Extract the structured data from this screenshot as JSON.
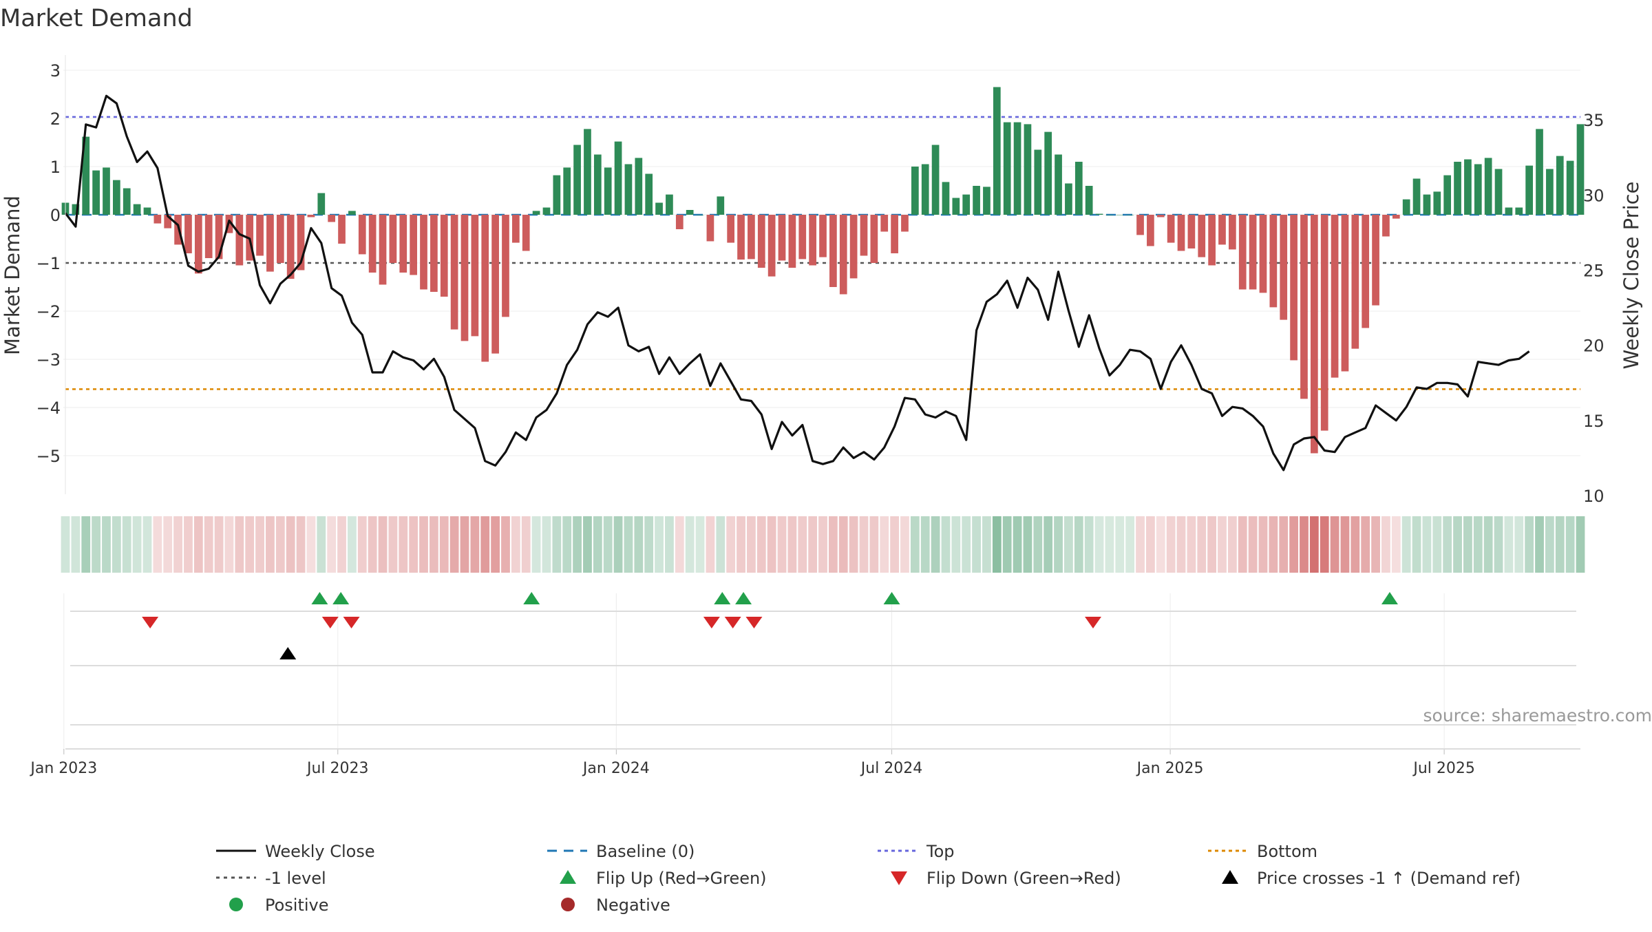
{
  "title": "Market Demand",
  "source": "source: sharemaestro.com",
  "colors": {
    "positive": "#2e8b57",
    "negative": "#cd5c5c",
    "close": "#111111",
    "baseline": "#1f77b4",
    "top": "#6666dd",
    "bottom": "#dd8800",
    "minus_one": "#555555",
    "flip_up": "#22a04b",
    "flip_down": "#d62728",
    "cross": "#000000"
  },
  "chart_data": {
    "type": "bar",
    "title": "Market Demand",
    "ylabel": "Market Demand",
    "y2label": "Weekly Close Price",
    "ylim": [
      -5.4,
      3.2
    ],
    "y2lim": [
      10,
      38.4
    ],
    "yticks": [
      "3",
      "2",
      "1",
      "0",
      "−1",
      "−2",
      "−3",
      "−4",
      "−5"
    ],
    "y2ticks": [
      "35",
      "30",
      "25",
      "20",
      "15",
      "10"
    ],
    "x_start": "2023-01-02",
    "x_end": "2025-09-29",
    "xticks": [
      {
        "date": "2023-01-01",
        "label": "Jan 2023"
      },
      {
        "date": "2023-07-01",
        "label": "Jul 2023"
      },
      {
        "date": "2024-01-01",
        "label": "Jan 2024"
      },
      {
        "date": "2024-07-01",
        "label": "Jul 2024"
      },
      {
        "date": "2025-01-01",
        "label": "Jan 2025"
      },
      {
        "date": "2025-07-01",
        "label": "Jul 2025"
      }
    ],
    "reference_lines": {
      "baseline": 0,
      "top": 2.03,
      "bottom": -3.62,
      "minus_one": -1.0
    },
    "demand": [
      0.25,
      0.22,
      1.62,
      0.92,
      0.98,
      0.72,
      0.55,
      0.22,
      0.15,
      -0.18,
      -0.28,
      -0.62,
      -0.8,
      -1.22,
      -0.9,
      -0.92,
      -0.38,
      -1.05,
      -0.95,
      -0.85,
      -1.18,
      -1.0,
      -1.33,
      -1.15,
      -0.05,
      0.45,
      -0.15,
      -0.6,
      0.08,
      -0.82,
      -1.2,
      -1.45,
      -1.0,
      -1.2,
      -1.25,
      -1.55,
      -1.6,
      -1.7,
      -2.38,
      -2.62,
      -2.52,
      -3.05,
      -2.88,
      -2.12,
      -0.58,
      -0.75,
      0.08,
      0.15,
      0.82,
      0.98,
      1.45,
      1.78,
      1.25,
      0.98,
      1.52,
      1.05,
      1.18,
      0.85,
      0.25,
      0.42,
      -0.3,
      0.1,
      0.0,
      -0.55,
      0.38,
      -0.58,
      -0.93,
      -0.92,
      -1.1,
      -1.28,
      -0.95,
      -1.1,
      -0.92,
      -1.05,
      -0.88,
      -1.5,
      -1.65,
      -1.32,
      -0.85,
      -1.0,
      -0.35,
      -0.8,
      -0.35,
      1.0,
      1.05,
      1.45,
      0.68,
      0.35,
      0.42,
      0.6,
      0.58,
      2.65,
      1.92,
      1.92,
      1.88,
      1.35,
      1.72,
      1.25,
      0.65,
      1.1,
      0.6,
      0.02,
      0.0,
      0.0,
      0.0,
      -0.42,
      -0.65,
      -0.05,
      -0.58,
      -0.75,
      -0.7,
      -0.88,
      -1.05,
      -0.62,
      -0.72,
      -1.55,
      -1.55,
      -1.62,
      -1.92,
      -2.18,
      -3.02,
      -3.82,
      -4.95,
      -4.48,
      -3.38,
      -3.25,
      -2.78,
      -2.35,
      -1.88,
      -0.45,
      -0.08,
      0.32,
      0.75,
      0.42,
      0.48,
      0.82,
      1.1,
      1.15,
      1.05,
      1.18,
      0.95,
      0.15,
      0.15,
      1.02,
      1.78,
      0.95,
      1.22,
      1.12,
      1.88
    ],
    "close": [
      28.8,
      27.9,
      34.7,
      34.5,
      36.6,
      36.1,
      33.9,
      32.2,
      32.9,
      31.8,
      28.6,
      28.0,
      25.3,
      24.9,
      25.1,
      25.9,
      28.3,
      27.4,
      27.1,
      24.0,
      22.8,
      24.1,
      24.7,
      25.5,
      27.8,
      26.8,
      23.8,
      23.3,
      21.5,
      20.7,
      18.2,
      18.2,
      19.6,
      19.2,
      19.0,
      18.4,
      19.1,
      17.9,
      15.7,
      15.1,
      14.5,
      12.3,
      12.0,
      12.9,
      14.2,
      13.7,
      15.2,
      15.7,
      16.8,
      18.7,
      19.7,
      21.4,
      22.2,
      21.9,
      22.5,
      20.0,
      19.6,
      19.9,
      18.1,
      19.2,
      18.1,
      18.8,
      19.4,
      17.3,
      18.8,
      17.6,
      16.4,
      16.3,
      15.4,
      13.1,
      14.9,
      14.0,
      14.7,
      12.3,
      12.1,
      12.3,
      13.2,
      12.5,
      12.9,
      12.4,
      13.2,
      14.6,
      16.5,
      16.4,
      15.4,
      15.2,
      15.6,
      15.3,
      13.7,
      21.0,
      22.9,
      23.4,
      24.3,
      22.5,
      24.5,
      23.7,
      21.7,
      24.9,
      22.3,
      19.9,
      22.0,
      19.8,
      18.0,
      18.7,
      19.7,
      19.6,
      19.1,
      17.1,
      18.9,
      20.0,
      18.7,
      17.1,
      16.8,
      15.3,
      15.9,
      15.8,
      15.3,
      14.6,
      12.8,
      11.7,
      13.4,
      13.8,
      13.9,
      13.0,
      12.9,
      13.9,
      14.2,
      14.5,
      16.0,
      15.5,
      15.0,
      15.9,
      17.2,
      17.1,
      17.5,
      17.5,
      17.4,
      16.6,
      18.9,
      18.8,
      18.7,
      19.0,
      19.1,
      19.6
    ],
    "flip_up_dates": [
      "2023-06-19",
      "2023-07-03",
      "2023-11-06",
      "2024-03-11",
      "2024-03-25",
      "2024-07-01",
      "2025-05-26"
    ],
    "flip_down_dates": [
      "2023-02-27",
      "2023-06-26",
      "2023-07-10",
      "2024-03-04",
      "2024-03-18",
      "2024-04-01",
      "2024-11-11"
    ],
    "price_cross_dates": [
      "2023-05-29"
    ]
  },
  "legend": {
    "weekly_close": "Weekly Close",
    "baseline": "Baseline (0)",
    "top": "Top",
    "bottom": "Bottom",
    "minus_one": "-1 level",
    "flip_up": "Flip Up (Red→Green)",
    "flip_down": "Flip Down (Green→Red)",
    "price_cross": "Price crosses -1 ↑ (Demand ref)",
    "positive": "Positive",
    "negative": "Negative"
  }
}
